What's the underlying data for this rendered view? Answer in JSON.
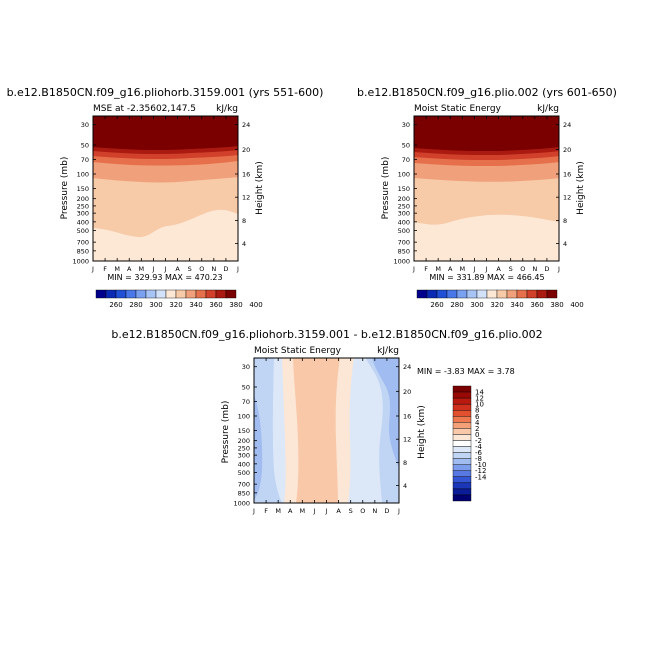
{
  "chart_data": [
    {
      "type": "heatmap",
      "title": "b.e12.B1850CN.f09_g16.pliohorb.3159.001 (yrs 551-600)",
      "subtitle_left": "MSE at -2.35602,147.5",
      "subtitle_right": "kJ/kg",
      "ylabel_left": "Pressure (mb)",
      "ylabel_right": "Height (km)",
      "months": [
        "J",
        "F",
        "M",
        "A",
        "M",
        "J",
        "J",
        "A",
        "S",
        "O",
        "N",
        "D",
        "J"
      ],
      "pressure_ticks": [
        "30",
        "50",
        "70",
        "100",
        "150",
        "200",
        "250",
        "300",
        "400",
        "500",
        "700",
        "850",
        "1000"
      ],
      "height_ticks": [
        "24",
        "20",
        "16",
        "12",
        "8",
        "4"
      ],
      "stats": "MIN = 329.93 MAX = 470.23",
      "colorbar_labels": [
        "260",
        "280",
        "300",
        "320",
        "340",
        "360",
        "380",
        "400"
      ]
    },
    {
      "type": "heatmap",
      "title": "b.e12.B1850CN.f09_g16.plio.002 (yrs 601-650)",
      "subtitle_left": "Moist Static Energy",
      "subtitle_right": "kJ/kg",
      "ylabel_left": "Pressure (mb)",
      "ylabel_right": "Height (km)",
      "months": [
        "J",
        "F",
        "M",
        "A",
        "M",
        "J",
        "J",
        "A",
        "S",
        "O",
        "N",
        "D",
        "J"
      ],
      "pressure_ticks": [
        "30",
        "50",
        "70",
        "100",
        "150",
        "200",
        "250",
        "300",
        "400",
        "500",
        "700",
        "850",
        "1000"
      ],
      "height_ticks": [
        "24",
        "20",
        "16",
        "12",
        "8",
        "4"
      ],
      "stats": "MIN = 331.89 MAX = 466.45",
      "colorbar_labels": [
        "260",
        "280",
        "300",
        "320",
        "340",
        "360",
        "380",
        "400"
      ]
    },
    {
      "type": "heatmap",
      "title": "b.e12.B1850CN.f09_g16.pliohorb.3159.001 - b.e12.B1850CN.f09_g16.plio.002",
      "subtitle_left": "Moist Static Energy",
      "subtitle_right": "kJ/kg",
      "ylabel_left": "Pressure (mb)",
      "ylabel_right": "Height (km)",
      "months": [
        "J",
        "F",
        "M",
        "A",
        "M",
        "J",
        "J",
        "A",
        "S",
        "O",
        "N",
        "D",
        "J"
      ],
      "pressure_ticks": [
        "30",
        "50",
        "70",
        "100",
        "150",
        "200",
        "250",
        "300",
        "400",
        "500",
        "700",
        "850",
        "1000"
      ],
      "height_ticks": [
        "24",
        "20",
        "16",
        "12",
        "8",
        "4"
      ],
      "stats": "MIN = -3.83 MAX = 3.78",
      "colorbar_labels": [
        "14",
        "12",
        "10",
        "8",
        "6",
        "4",
        "2",
        "0",
        "-2",
        "-4",
        "-6",
        "-8",
        "-10",
        "-12",
        "-14"
      ]
    }
  ],
  "colors": {
    "abs_scale": [
      "#00008c",
      "#0a2ab4",
      "#2050d6",
      "#4a78e8",
      "#7aa0f0",
      "#a8c4f4",
      "#d2e2f8",
      "#fde8d6",
      "#f7caa8",
      "#f0a07a",
      "#e6704c",
      "#d0402a",
      "#aa1a10",
      "#7a0000"
    ],
    "diff_scale": [
      "#7a0000",
      "#990a06",
      "#b81a10",
      "#d0301e",
      "#e25030",
      "#ee7850",
      "#f4a078",
      "#f8c8a8",
      "#fce6d6",
      "#ffffff",
      "#dce8f8",
      "#c0d4f4",
      "#a0bcf0",
      "#7c9cec",
      "#5878e2",
      "#3456d4",
      "#1c36b8",
      "#0a1c98",
      "#000070"
    ]
  }
}
